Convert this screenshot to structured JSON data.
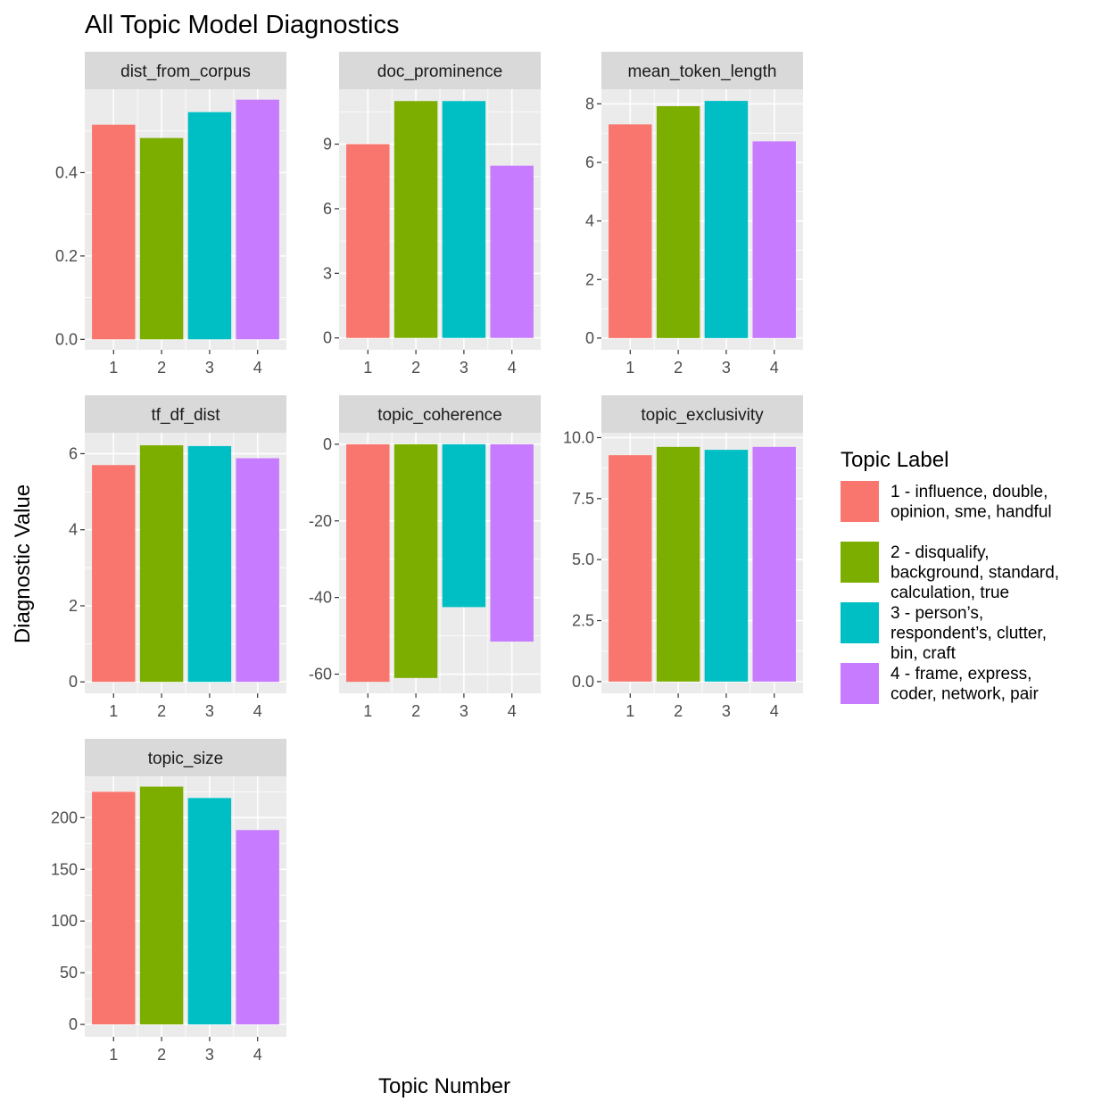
{
  "chart_data": {
    "type": "bar",
    "title": "All Topic Model Diagnostics",
    "xlabel": "Topic Number",
    "ylabel": "Diagnostic Value",
    "categories": [
      "1",
      "2",
      "3",
      "4"
    ],
    "legend": {
      "title": "Topic Label",
      "position": "right",
      "entries": [
        {
          "lines": [
            "1 - influence, double,",
            "opinion, sme, handful"
          ],
          "color": "#F8766D"
        },
        {
          "lines": [
            "2 - disqualify,",
            "background, standard,",
            "calculation, true"
          ],
          "color": "#7CAE00"
        },
        {
          "lines": [
            "3 - person’s,",
            "respondent’s, clutter,",
            "bin, craft"
          ],
          "color": "#00BFC4"
        },
        {
          "lines": [
            "4 - frame, express,",
            "coder, network, pair"
          ],
          "color": "#C77CFF"
        }
      ]
    },
    "grid": true,
    "facets": [
      {
        "name": "dist_from_corpus",
        "values": [
          0.515,
          0.483,
          0.545,
          0.575
        ],
        "ylim": [
          -0.025,
          0.6
        ],
        "ticks": [
          0,
          0.2,
          0.4
        ],
        "tick_labels": [
          "0.0",
          "0.2",
          "0.4"
        ]
      },
      {
        "name": "doc_prominence",
        "values": [
          9,
          11,
          11,
          8
        ],
        "ylim": [
          -0.55,
          11.55
        ],
        "ticks": [
          0,
          3,
          6,
          9
        ],
        "tick_labels": [
          "0",
          "3",
          "6",
          "9"
        ]
      },
      {
        "name": "mean_token_length",
        "values": [
          7.3,
          7.92,
          8.1,
          6.72
        ],
        "ylim": [
          -0.4,
          8.5
        ],
        "ticks": [
          0,
          2,
          4,
          6,
          8
        ],
        "tick_labels": [
          "0",
          "2",
          "4",
          "6",
          "8"
        ]
      },
      {
        "name": "tf_df_dist",
        "values": [
          5.7,
          6.22,
          6.2,
          5.88
        ],
        "ylim": [
          -0.3,
          6.55
        ],
        "ticks": [
          0,
          2,
          4,
          6
        ],
        "tick_labels": [
          "0",
          "2",
          "4",
          "6"
        ]
      },
      {
        "name": "topic_coherence",
        "values": [
          -62,
          -61,
          -42.5,
          -51.5
        ],
        "ylim": [
          -65,
          3
        ],
        "ticks": [
          -60,
          -40,
          -20,
          0
        ],
        "tick_labels": [
          "-60",
          "-40",
          "-20",
          "0"
        ]
      },
      {
        "name": "topic_exclusivity",
        "values": [
          9.28,
          9.62,
          9.5,
          9.62
        ],
        "ylim": [
          -0.48,
          10.2
        ],
        "ticks": [
          0,
          2.5,
          5,
          7.5,
          10
        ],
        "tick_labels": [
          "0.0",
          "2.5",
          "5.0",
          "7.5",
          "10.0"
        ]
      },
      {
        "name": "topic_size",
        "values": [
          225,
          230,
          219,
          188
        ],
        "ylim": [
          -12,
          240
        ],
        "ticks": [
          0,
          50,
          100,
          150,
          200
        ],
        "tick_labels": [
          "0",
          "50",
          "100",
          "150",
          "200"
        ]
      }
    ]
  }
}
